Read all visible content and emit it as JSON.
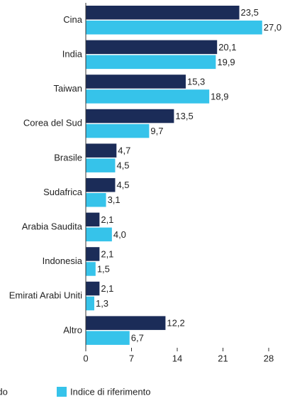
{
  "chart_data": {
    "type": "bar",
    "orientation": "horizontal",
    "categories": [
      "Cina",
      "India",
      "Taiwan",
      "Corea del Sud",
      "Brasile",
      "Sudafrica",
      "Arabia Saudita",
      "Indonesia",
      "Emirati Arabi Uniti",
      "Altro"
    ],
    "series": [
      {
        "name": "Fondo",
        "color": "#1b2c58",
        "values": [
          23.5,
          20.1,
          15.3,
          13.5,
          4.7,
          4.5,
          2.1,
          2.1,
          2.1,
          12.2
        ],
        "value_labels": [
          "23,5",
          "20,1",
          "15,3",
          "13,5",
          "4,7",
          "4,5",
          "2,1",
          "2,1",
          "2,1",
          "12,2"
        ]
      },
      {
        "name": "Indice di riferimento",
        "color": "#36c3ea",
        "values": [
          27.0,
          19.9,
          18.9,
          9.7,
          4.5,
          3.1,
          4.0,
          1.5,
          1.3,
          6.7
        ],
        "value_labels": [
          "27,0",
          "19,9",
          "18,9",
          "9,7",
          "4,5",
          "3,1",
          "4,0",
          "1,5",
          "1,3",
          "6,7"
        ]
      }
    ],
    "xlim": [
      0,
      28
    ],
    "xticks": [
      0,
      7,
      14,
      21,
      28
    ],
    "grid": false
  }
}
